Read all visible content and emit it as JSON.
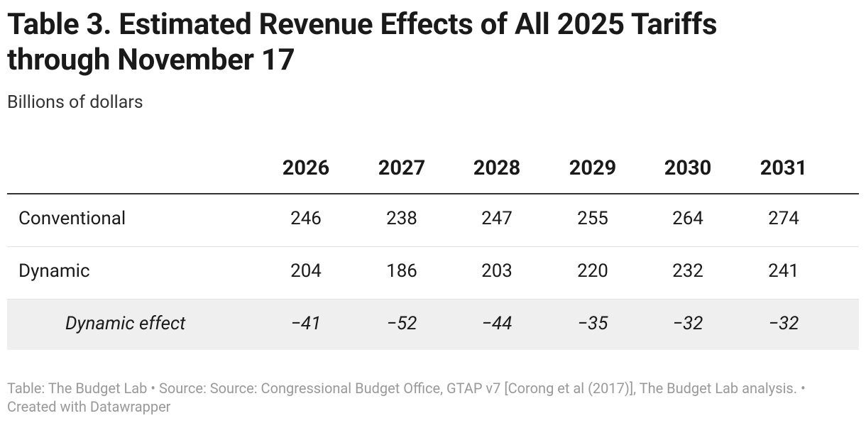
{
  "header": {
    "title": "Table 3. Estimated Revenue Effects of All 2025 Tariffs through November 17",
    "subtitle": "Billions of dollars"
  },
  "table": {
    "columns": [
      "2026",
      "2027",
      "2028",
      "2029",
      "2030",
      "2031"
    ],
    "rows": [
      {
        "label": "Conventional",
        "values": [
          "246",
          "238",
          "247",
          "255",
          "264",
          "274"
        ]
      },
      {
        "label": "Dynamic",
        "values": [
          "204",
          "186",
          "203",
          "220",
          "232",
          "241"
        ]
      },
      {
        "label": "Dynamic effect",
        "values": [
          "−41",
          "−52",
          "−44",
          "−35",
          "−32",
          "−32"
        ]
      }
    ]
  },
  "footer": "Table: The Budget Lab • Source: Source: Congressional Budget Office, GTAP v7 [Corong et al (2017)], The Budget Lab analysis. • Created with Datawrapper"
}
